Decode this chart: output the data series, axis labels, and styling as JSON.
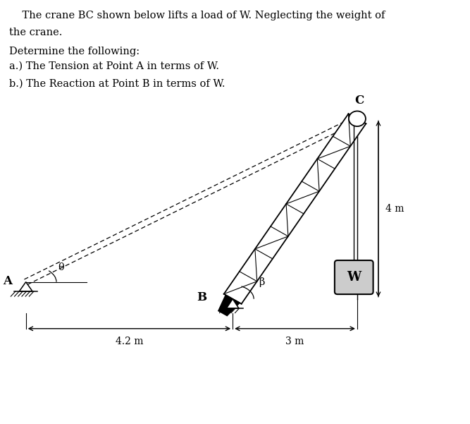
{
  "title_line1": "    The crane BC shown below lifts a load of W. Neglecting the weight of",
  "title_line2": "the crane.",
  "problem_line1": "Determine the following:",
  "problem_line2": "a.) The Tension at Point A in terms of W.",
  "problem_line3": "b.) The Reaction at Point B in terms of W.",
  "bg_color": "#ffffff",
  "text_color": "#000000",
  "A": [
    0.055,
    0.335
  ],
  "B": [
    0.495,
    0.295
  ],
  "C": [
    0.76,
    0.72
  ],
  "dim_4m_label": "4 m",
  "dim_42m_label": "4.2 m",
  "dim_3m_label": "3 m",
  "label_A": "A",
  "label_B": "B",
  "label_C": "C",
  "label_theta": "θ",
  "label_beta": "β",
  "label_W": "W",
  "font_text": 10.5,
  "font_label": 11,
  "font_dim": 10
}
